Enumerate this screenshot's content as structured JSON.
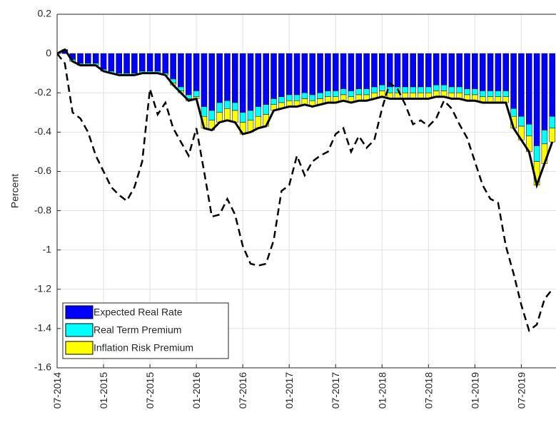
{
  "chart_data": {
    "type": "stacked_bar_line",
    "y_label": "Percent",
    "categories": [
      "07-2014",
      null,
      null,
      null,
      null,
      null,
      "01-2015",
      null,
      null,
      null,
      null,
      null,
      "07-2015",
      null,
      null,
      null,
      null,
      null,
      "01-2016",
      null,
      null,
      null,
      null,
      null,
      "07-2016",
      null,
      null,
      null,
      null,
      null,
      "01-2017",
      null,
      null,
      null,
      null,
      null,
      "07-2017",
      null,
      null,
      null,
      null,
      null,
      "01-2018",
      null,
      null,
      null,
      null,
      null,
      "07-2018",
      null,
      null,
      null,
      null,
      null,
      "01-2019",
      null,
      null,
      null,
      null,
      null,
      "07-2019",
      null,
      null,
      null,
      null
    ],
    "series": [
      {
        "name": "Expected Real Rate",
        "color": "#0000ff",
        "values": [
          0,
          0.02,
          -0.03,
          -0.05,
          -0.05,
          -0.05,
          -0.08,
          -0.09,
          -0.1,
          -0.1,
          -0.1,
          -0.09,
          -0.09,
          -0.09,
          -0.1,
          -0.13,
          -0.17,
          -0.21,
          -0.19,
          -0.27,
          -0.29,
          -0.25,
          -0.24,
          -0.25,
          -0.3,
          -0.29,
          -0.27,
          -0.26,
          -0.23,
          -0.22,
          -0.21,
          -0.21,
          -0.2,
          -0.21,
          -0.2,
          -0.19,
          -0.19,
          -0.18,
          -0.19,
          -0.18,
          -0.18,
          -0.17,
          -0.16,
          -0.17,
          -0.17,
          -0.17,
          -0.17,
          -0.17,
          -0.17,
          -0.16,
          -0.16,
          -0.17,
          -0.17,
          -0.18,
          -0.18,
          -0.19,
          -0.19,
          -0.19,
          -0.19,
          -0.28,
          -0.32,
          -0.36,
          -0.47,
          -0.39,
          -0.32
        ]
      },
      {
        "name": "Real Term Premium",
        "color": "#00ffff",
        "values": [
          0,
          0,
          -0.01,
          -0.01,
          -0.01,
          -0.01,
          -0.01,
          -0.01,
          -0.01,
          -0.01,
          -0.01,
          -0.01,
          -0.01,
          -0.01,
          -0.01,
          -0.02,
          -0.02,
          -0.02,
          -0.03,
          -0.05,
          -0.05,
          -0.05,
          -0.04,
          -0.04,
          -0.05,
          -0.05,
          -0.05,
          -0.05,
          -0.03,
          -0.03,
          -0.03,
          -0.03,
          -0.03,
          -0.03,
          -0.03,
          -0.03,
          -0.03,
          -0.03,
          -0.03,
          -0.03,
          -0.03,
          -0.03,
          -0.03,
          -0.03,
          -0.03,
          -0.03,
          -0.03,
          -0.03,
          -0.03,
          -0.03,
          -0.03,
          -0.03,
          -0.03,
          -0.03,
          -0.03,
          -0.03,
          -0.03,
          -0.03,
          -0.03,
          -0.04,
          -0.05,
          -0.06,
          -0.08,
          -0.07,
          -0.06
        ]
      },
      {
        "name": "Inflation Risk Premium",
        "color": "#ffff00",
        "values": [
          0,
          0,
          0,
          0,
          0,
          0,
          0,
          0,
          0,
          0,
          0,
          0,
          0,
          0,
          0,
          -0.01,
          -0.01,
          -0.01,
          -0.01,
          -0.06,
          -0.05,
          -0.05,
          -0.06,
          -0.06,
          -0.06,
          -0.06,
          -0.06,
          -0.06,
          -0.03,
          -0.03,
          -0.03,
          -0.03,
          -0.03,
          -0.03,
          -0.03,
          -0.03,
          -0.03,
          -0.03,
          -0.03,
          -0.03,
          -0.03,
          -0.03,
          -0.03,
          -0.03,
          -0.03,
          -0.03,
          -0.03,
          -0.03,
          -0.03,
          -0.03,
          -0.03,
          -0.03,
          -0.03,
          -0.03,
          -0.03,
          -0.03,
          -0.03,
          -0.03,
          -0.03,
          -0.06,
          -0.07,
          -0.08,
          -0.12,
          -0.1,
          -0.07
        ]
      }
    ],
    "lines": [
      {
        "color": "#000000",
        "dash": false,
        "values": [
          0,
          0.02,
          -0.04,
          -0.06,
          -0.06,
          -0.06,
          -0.09,
          -0.1,
          -0.11,
          -0.11,
          -0.11,
          -0.1,
          -0.1,
          -0.1,
          -0.11,
          -0.16,
          -0.2,
          -0.24,
          -0.23,
          -0.38,
          -0.39,
          -0.35,
          -0.34,
          -0.35,
          -0.41,
          -0.4,
          -0.38,
          -0.37,
          -0.29,
          -0.28,
          -0.27,
          -0.27,
          -0.26,
          -0.27,
          -0.26,
          -0.25,
          -0.25,
          -0.24,
          -0.25,
          -0.24,
          -0.24,
          -0.23,
          -0.22,
          -0.23,
          -0.23,
          -0.23,
          -0.23,
          -0.23,
          -0.23,
          -0.22,
          -0.22,
          -0.23,
          -0.23,
          -0.24,
          -0.24,
          -0.25,
          -0.25,
          -0.25,
          -0.25,
          -0.38,
          -0.44,
          -0.5,
          -0.67,
          -0.56,
          -0.45
        ]
      },
      {
        "color": "#000000",
        "dash": true,
        "values": [
          0,
          -0.05,
          -0.3,
          -0.33,
          -0.4,
          -0.52,
          -0.6,
          -0.68,
          -0.72,
          -0.75,
          -0.68,
          -0.55,
          -0.18,
          -0.31,
          -0.25,
          -0.38,
          -0.45,
          -0.52,
          -0.38,
          -0.6,
          -0.83,
          -0.82,
          -0.74,
          -0.82,
          -0.98,
          -1.07,
          -1.08,
          -1.07,
          -0.95,
          -0.7,
          -0.67,
          -0.52,
          -0.62,
          -0.55,
          -0.52,
          -0.5,
          -0.41,
          -0.38,
          -0.5,
          -0.42,
          -0.48,
          -0.44,
          -0.28,
          -0.15,
          -0.18,
          -0.26,
          -0.36,
          -0.34,
          -0.37,
          -0.33,
          -0.24,
          -0.28,
          -0.36,
          -0.43,
          -0.55,
          -0.67,
          -0.74,
          -0.76,
          -0.98,
          -1.12,
          -1.28,
          -1.41,
          -1.38,
          -1.25,
          -1.2
        ]
      }
    ],
    "ylim": [
      -1.6,
      0.2
    ],
    "yticks": [
      0.2,
      0,
      -0.2,
      -0.4,
      -0.6,
      -0.8,
      -1,
      -1.2,
      -1.4,
      -1.6
    ],
    "grid": true,
    "legend": "lower-left"
  }
}
